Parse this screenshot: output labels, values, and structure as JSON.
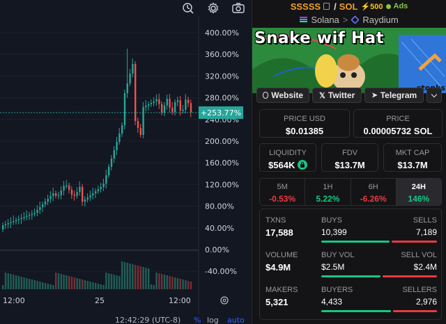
{
  "toolbar": {
    "icons": [
      "chart-settings-icon",
      "gear-icon",
      "camera-icon"
    ]
  },
  "chart": {
    "y_ticks": [
      "400.00%",
      "360.00%",
      "320.00%",
      "280.00%",
      "240.00%",
      "200.00%",
      "160.00%",
      "120.00%",
      "80.00%",
      "40.00%",
      "0.00%",
      "-40.00%"
    ],
    "last_value_label": "+253.77%",
    "x_ticks": [
      "12:00",
      "25",
      "12:00"
    ],
    "colors": {
      "up": "#26a69a",
      "down": "#ef5350",
      "bg": "#131722",
      "badge": "#26a69a"
    }
  },
  "status_bar": {
    "time": "12:42:29 (UTC-8)",
    "percent": "%",
    "log": "log",
    "auto": "auto"
  },
  "pair": {
    "base": "SSSSS",
    "slash": "/",
    "quote": "SOL",
    "boost": "⚡500",
    "ads": "Ads",
    "chain": "Solana",
    "separator": ">",
    "dex": "Raydium"
  },
  "banner": {
    "title": "Snake wif Hat"
  },
  "links": {
    "website": "Website",
    "twitter": "Twitter",
    "telegram": "Telegram"
  },
  "price": {
    "usd_label": "PRICE USD",
    "usd_value": "$0.01385",
    "native_label": "PRICE",
    "native_value": "0.00005732 SOL"
  },
  "metrics": {
    "liquidity_label": "LIQUIDITY",
    "liquidity_value": "$564K",
    "fdv_label": "FDV",
    "fdv_value": "$13.7M",
    "mktcap_label": "MKT CAP",
    "mktcap_value": "$13.7M"
  },
  "timeframes": [
    {
      "label": "5M",
      "value": "-0.53%"
    },
    {
      "label": "1H",
      "value": "5.22%"
    },
    {
      "label": "6H",
      "value": "-6.26%"
    },
    {
      "label": "24H",
      "value": "146%"
    }
  ],
  "txns": {
    "txns_label": "TXNS",
    "txns_value": "17,588",
    "buys_label": "BUYS",
    "buys_value": "10,399",
    "sells_label": "SELLS",
    "sells_value": "7,189",
    "volume_label": "VOLUME",
    "volume_value": "$4.9M",
    "buyvol_label": "BUY VOL",
    "buyvol_value": "$2.5M",
    "sellvol_label": "SELL VOL",
    "sellvol_value": "$2.4M",
    "makers_label": "MAKERS",
    "makers_value": "5,321",
    "buyers_label": "BUYERS",
    "buyers_value": "4,433",
    "sellers_label": "SELLERS",
    "sellers_value": "2,976"
  }
}
